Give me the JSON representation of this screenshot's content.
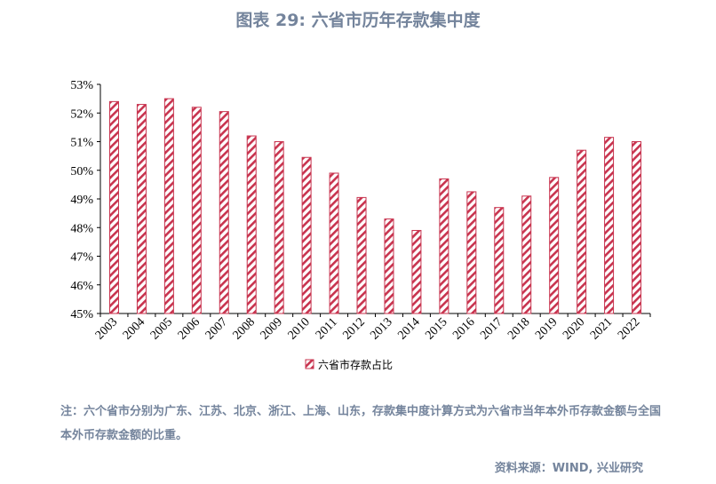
{
  "title": "图表 29: 六省市历年存款集中度",
  "chart_data": {
    "type": "bar",
    "title": "图表 29: 六省市历年存款集中度",
    "categories": [
      "2003",
      "2004",
      "2005",
      "2006",
      "2007",
      "2008",
      "2009",
      "2010",
      "2011",
      "2012",
      "2013",
      "2014",
      "2015",
      "2016",
      "2017",
      "2018",
      "2019",
      "2020",
      "2021",
      "2022"
    ],
    "series": [
      {
        "name": "六省市存款占比",
        "values": [
          52.4,
          52.3,
          52.5,
          52.2,
          52.05,
          51.2,
          51.0,
          50.45,
          49.9,
          49.05,
          48.3,
          47.9,
          49.7,
          49.25,
          48.7,
          49.1,
          49.75,
          50.7,
          51.15,
          51.0
        ]
      }
    ],
    "ylim": [
      45,
      53
    ],
    "yticks": [
      "45%",
      "46%",
      "47%",
      "48%",
      "49%",
      "50%",
      "51%",
      "52%",
      "53%"
    ],
    "xlabel": "",
    "ylabel": "",
    "grid": false,
    "legend": "bottom",
    "bar_color": "#c8344f",
    "bar_fill": "diagonal-hatch"
  },
  "note": "注：六个省市分别为广东、江苏、北京、浙江、上海、山东，存款集中度计算方式为六省市当年本外币存款金额与全国本外币存款金额的比重。",
  "source": "资料来源：WIND, 兴业研究"
}
